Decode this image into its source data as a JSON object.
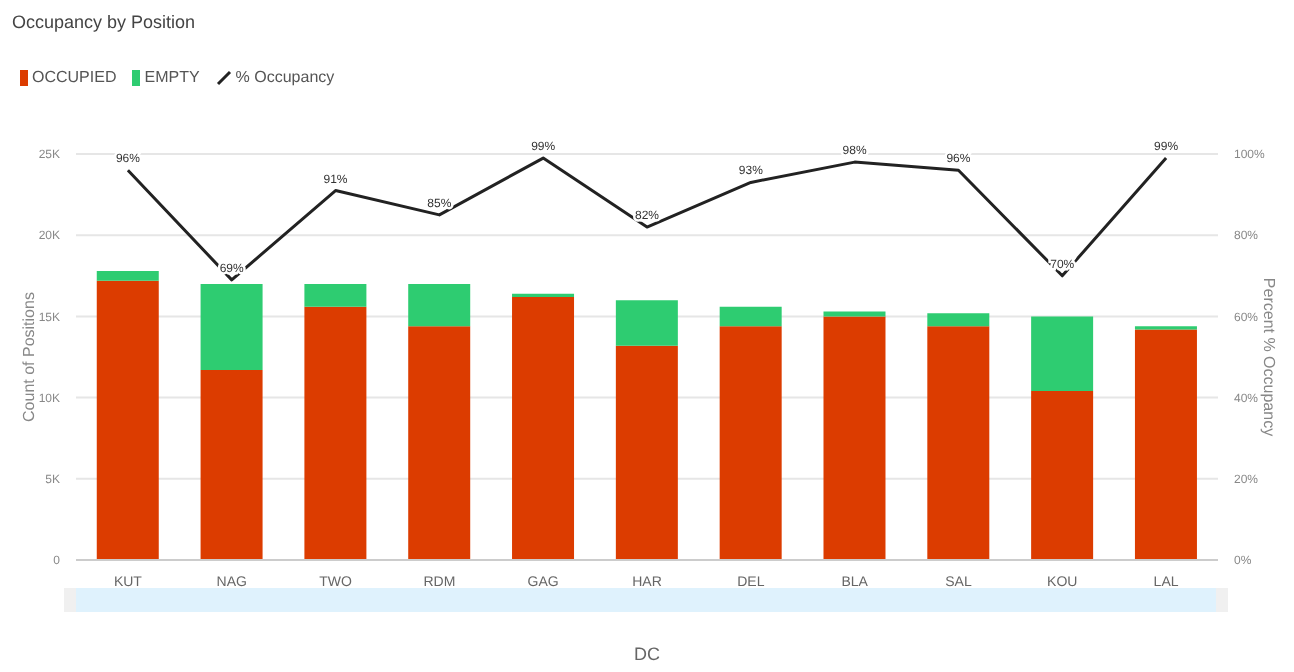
{
  "chart_data": {
    "type": "bar",
    "title": "Occupancy by Position",
    "xlabel": "DC",
    "ylabel": "Count of Positions",
    "y2label": "Percent % Occupancy",
    "categories": [
      "KUT",
      "NAG",
      "TWO",
      "RDM",
      "GAG",
      "HAR",
      "DEL",
      "BLA",
      "SAL",
      "KOU",
      "LAL"
    ],
    "stacked": true,
    "series": [
      {
        "name": "OCCUPIED",
        "color": "#dc3c00",
        "values": [
          17.2,
          11.7,
          15.6,
          14.4,
          16.2,
          13.2,
          14.4,
          15.0,
          14.4,
          10.4,
          14.2
        ]
      },
      {
        "name": "EMPTY",
        "color": "#2ecc71",
        "values": [
          0.6,
          5.3,
          1.4,
          2.6,
          0.2,
          2.8,
          1.2,
          0.3,
          0.8,
          4.6,
          0.2
        ]
      },
      {
        "name": "% Occupancy",
        "type": "line",
        "axis": "y2",
        "color": "#222222",
        "values": [
          96,
          69,
          91,
          85,
          99,
          82,
          93,
          98,
          96,
          70,
          99
        ],
        "value_labels": [
          "96%",
          "69%",
          "91%",
          "85%",
          "99%",
          "82%",
          "93%",
          "98%",
          "96%",
          "70%",
          "99%"
        ]
      }
    ],
    "ylim": [
      0,
      25
    ],
    "yticks": [
      {
        "value": 0,
        "label": "0"
      },
      {
        "value": 5,
        "label": "5K"
      },
      {
        "value": 10,
        "label": "10K"
      },
      {
        "value": 15,
        "label": "15K"
      },
      {
        "value": 20,
        "label": "20K"
      },
      {
        "value": 25,
        "label": "25K"
      }
    ],
    "y2lim": [
      0,
      100
    ],
    "y2ticks": [
      {
        "value": 0,
        "label": "0%"
      },
      {
        "value": 20,
        "label": "20%"
      },
      {
        "value": 40,
        "label": "40%"
      },
      {
        "value": 60,
        "label": "60%"
      },
      {
        "value": 80,
        "label": "80%"
      },
      {
        "value": 100,
        "label": "100%"
      }
    ],
    "grid": "y",
    "legend": "top left",
    "marker": "none",
    "line_style": "solid"
  }
}
